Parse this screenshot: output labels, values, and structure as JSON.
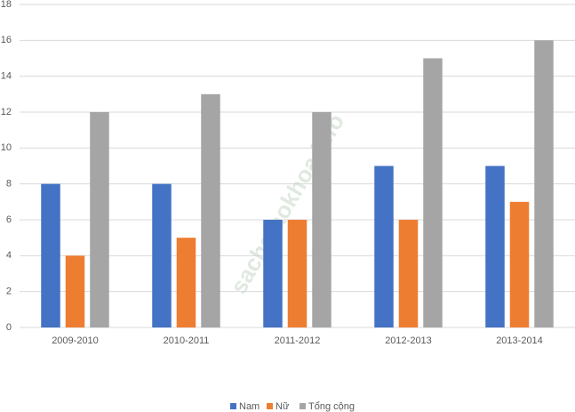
{
  "chart_data": {
    "type": "bar",
    "categories": [
      "2009-2010",
      "2010-2011",
      "2011-2012",
      "2012-2013",
      "2013-2014"
    ],
    "series": [
      {
        "name": "Nam",
        "color": "#4472c4",
        "values": [
          8,
          8,
          6,
          9,
          9
        ]
      },
      {
        "name": "Nữ",
        "color": "#ed7d31",
        "values": [
          4,
          5,
          6,
          6,
          7
        ]
      },
      {
        "name": "Tổng cộng",
        "color": "#a5a5a5",
        "values": [
          12,
          13,
          12,
          15,
          16
        ]
      }
    ],
    "ylim": [
      0,
      18
    ],
    "yticks": [
      0,
      2,
      4,
      6,
      8,
      10,
      12,
      14,
      16,
      18
    ],
    "grid": true,
    "legend": "bottom",
    "watermark": "sachgiaokhoa.info"
  }
}
